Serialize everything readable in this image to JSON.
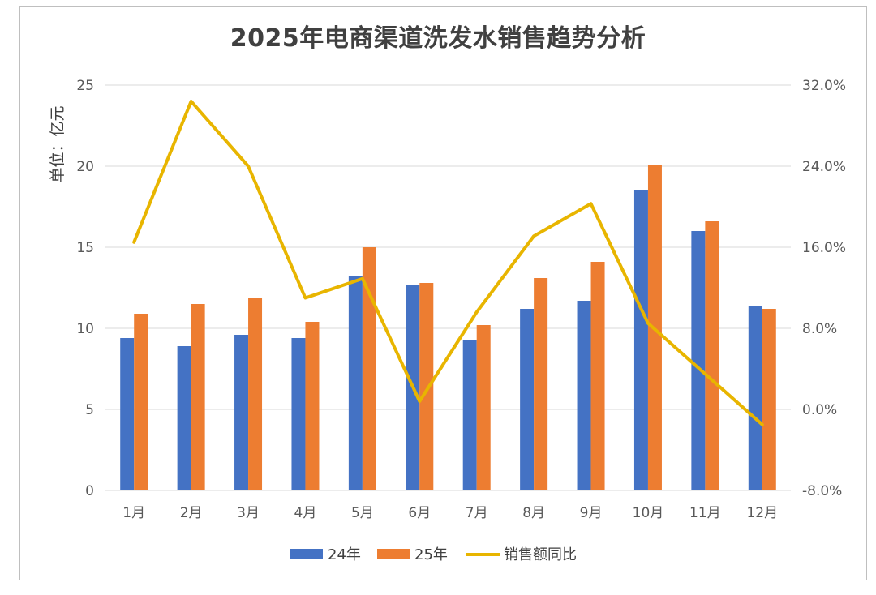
{
  "chart_data": {
    "type": "bar",
    "title": "2025年电商渠道洗发水销售趋势分析",
    "ylabel": "单位：亿元",
    "categories": [
      "1月",
      "2月",
      "3月",
      "4月",
      "5月",
      "6月",
      "7月",
      "8月",
      "9月",
      "10月",
      "11月",
      "12月"
    ],
    "series": [
      {
        "name": "24年",
        "type": "bar",
        "axis": "left",
        "color": "#4472C4",
        "values": [
          9.4,
          8.9,
          9.6,
          9.4,
          13.2,
          12.7,
          9.3,
          11.2,
          11.7,
          18.5,
          16.0,
          11.4
        ]
      },
      {
        "name": "25年",
        "type": "bar",
        "axis": "left",
        "color": "#ED7D31",
        "values": [
          10.9,
          11.5,
          11.9,
          10.4,
          15.0,
          12.8,
          10.2,
          13.1,
          14.1,
          20.1,
          16.6,
          11.2
        ]
      },
      {
        "name": "销售额同比",
        "type": "line",
        "axis": "right",
        "color": "#E8B500",
        "values": [
          16.5,
          30.4,
          24.0,
          11.0,
          12.9,
          0.8,
          9.6,
          17.1,
          20.3,
          8.5,
          3.5,
          -1.5
        ]
      }
    ],
    "y_left": {
      "min": 0,
      "max": 25,
      "ticks": [
        0,
        5,
        10,
        15,
        20,
        25
      ]
    },
    "y_right": {
      "min": -8,
      "max": 32,
      "ticks": [
        -8,
        0,
        8,
        16,
        24,
        32
      ],
      "tick_labels": [
        "-8.0%",
        "0.0%",
        "8.0%",
        "16.0%",
        "24.0%",
        "32.0%"
      ]
    },
    "grid": true,
    "legend_position": "bottom"
  }
}
